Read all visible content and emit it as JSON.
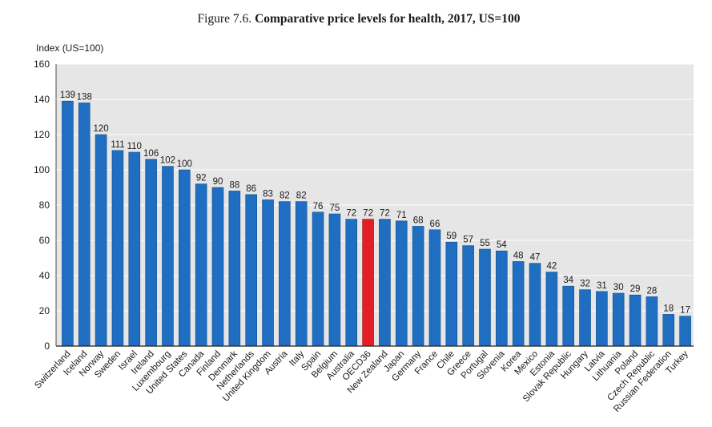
{
  "chart_data": {
    "type": "bar",
    "figure_label": "Figure 7.6.",
    "title": "Comparative price levels for health, 2017, US=100",
    "xlabel": "",
    "ylabel": "Index (US=100)",
    "ylim": [
      0,
      160
    ],
    "yticks": [
      0,
      20,
      40,
      60,
      80,
      100,
      120,
      140,
      160
    ],
    "grid": true,
    "categories": [
      "Switzerland",
      "Iceland",
      "Norway",
      "Sweden",
      "Israel",
      "Ireland",
      "Luxembourg",
      "United States",
      "Canada",
      "Finland",
      "Denmark",
      "Netherlands",
      "United Kingdom",
      "Austria",
      "Italy",
      "Spain",
      "Belgium",
      "Australia",
      "OECD36",
      "New Zealand",
      "Japan",
      "Germany",
      "France",
      "Chile",
      "Greece",
      "Portugal",
      "Slovenia",
      "Korea",
      "Mexico",
      "Estonia",
      "Slovak Republic",
      "Hungary",
      "Latvia",
      "Lithuania",
      "Poland",
      "Czech Republic",
      "Russian Federation",
      "Turkey"
    ],
    "values": [
      139,
      138,
      120,
      111,
      110,
      106,
      102,
      100,
      92,
      90,
      88,
      86,
      83,
      82,
      82,
      76,
      75,
      72,
      72,
      72,
      71,
      68,
      66,
      59,
      57,
      55,
      54,
      48,
      47,
      42,
      34,
      32,
      31,
      30,
      29,
      28,
      18,
      17
    ],
    "highlight_index": 18,
    "colors": {
      "bar": "#1f6ec1",
      "bar_outline": "#12508f",
      "highlight": "#e31e24",
      "highlight_outline": "#a3161a",
      "plot_background": "#e6e6e6",
      "gridline": "#ffffff",
      "axis": "#222222"
    }
  }
}
